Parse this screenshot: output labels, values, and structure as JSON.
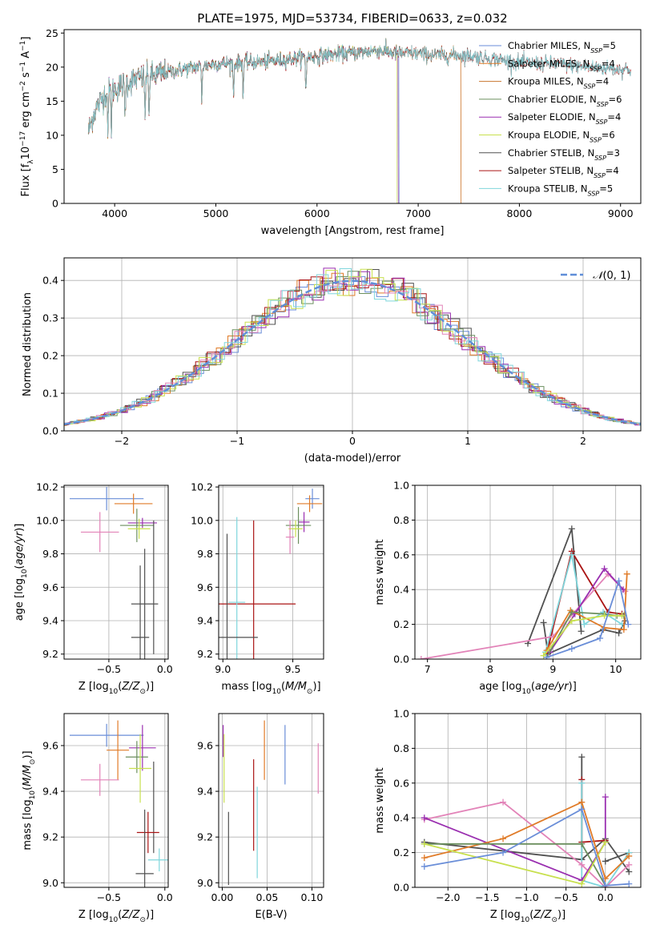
{
  "figure_title": "PLATE=1975, MJD=53734, FIBERID=0633, z=0.032",
  "colors": {
    "blue": "#6a8ed8",
    "orange": "#e07b28",
    "gray": "#505050",
    "red": "#aa1414",
    "purple": "#9a2fb0",
    "green": "#6b8f5e",
    "yellowgreen": "#c8e04e",
    "pink": "#e283b8",
    "cyan": "#7fd6dc",
    "brown": "#c8762f"
  },
  "chart_data": [
    {
      "id": "spectrum",
      "type": "line",
      "xlabel": "wavelength [Angstrom, rest frame]",
      "ylabel": "Flux [f_λ10^-17 erg cm^-2 s^-1 A^-1]",
      "xlim": [
        3500,
        9200
      ],
      "ylim": [
        0,
        25.5
      ],
      "xticks": [
        4000,
        5000,
        6000,
        7000,
        8000,
        9000
      ],
      "yticks": [
        0,
        5,
        10,
        15,
        20,
        25
      ],
      "grid": false,
      "legend_position": "top-right",
      "continuum_points": [
        [
          3740,
          10.5
        ],
        [
          3800,
          13.5
        ],
        [
          3900,
          16
        ],
        [
          4000,
          16.8
        ],
        [
          4100,
          17.5
        ],
        [
          4200,
          18.2
        ],
        [
          4400,
          18.8
        ],
        [
          4600,
          19.5
        ],
        [
          4800,
          20
        ],
        [
          5000,
          20.5
        ],
        [
          5200,
          20.6
        ],
        [
          5500,
          20.8
        ],
        [
          5800,
          21.3
        ],
        [
          6000,
          21.6
        ],
        [
          6200,
          21.9
        ],
        [
          6400,
          22.1
        ],
        [
          6600,
          22.5
        ],
        [
          6800,
          22
        ],
        [
          7000,
          22
        ],
        [
          7200,
          21.7
        ],
        [
          7400,
          21.8
        ],
        [
          7600,
          21.5
        ],
        [
          8000,
          20.7
        ],
        [
          8400,
          20.4
        ],
        [
          8800,
          19.9
        ],
        [
          9000,
          19.7
        ]
      ],
      "absorption_lines": [
        3933,
        3968,
        4102,
        4300,
        4340,
        4861,
        5175,
        5270,
        5890
      ],
      "series": [
        {
          "label": "Chabrier MILES, N_SSP=5",
          "color": "#6a8ed8",
          "end": 6810
        },
        {
          "label": "Salpeter MILES, N_SSP=4",
          "color": "#e07b28",
          "end": 7420
        },
        {
          "label": "Kroupa MILES, N_SSP=4",
          "color": "#c8762f",
          "end": 7420
        },
        {
          "label": "Chabrier ELODIE, N_SSP=6",
          "color": "#6b8f5e",
          "end": 6800
        },
        {
          "label": "Salpeter ELODIE, N_SSP=4",
          "color": "#9a2fb0",
          "end": 6800
        },
        {
          "label": "Kroupa ELODIE, N_SSP=6",
          "color": "#c8e04e",
          "end": 6790
        },
        {
          "label": "Chabrier STELIB, N_SSP=3",
          "color": "#505050",
          "end": 9100
        },
        {
          "label": "Salpeter STELIB, N_SSP=4",
          "color": "#aa1414",
          "end": 9100
        },
        {
          "label": "Kroupa STELIB, N_SSP=5",
          "color": "#7fd6dc",
          "end": 9100
        }
      ]
    },
    {
      "id": "residuals",
      "type": "histogram",
      "xlabel": "(data-model)/error",
      "ylabel": "Normed distribution",
      "xlim": [
        -2.5,
        2.5
      ],
      "ylim": [
        0,
        0.46
      ],
      "xticks": [
        -2,
        -1,
        0,
        1,
        2
      ],
      "yticks": [
        0.0,
        0.1,
        0.2,
        0.3,
        0.4
      ],
      "grid": true,
      "legend_position": "top-right",
      "reference_curve": {
        "label": "N(0,1)",
        "mean": 0,
        "sigma": 1,
        "color": "#5f8ed8"
      },
      "bin_width": 0.1,
      "series_colors": [
        "#6a8ed8",
        "#e07b28",
        "#505050",
        "#aa1414",
        "#9a2fb0",
        "#6b8f5e",
        "#c8e04e",
        "#e283b8",
        "#7fd6dc"
      ]
    },
    {
      "id": "age_vs_Z",
      "type": "errorbar",
      "xlabel": "Z [log10(Z/Z_sun)]",
      "ylabel": "age [log10(age/yr)]",
      "xlim": [
        -0.9,
        0.03
      ],
      "ylim": [
        9.17,
        10.21
      ],
      "xticks": [
        -0.5,
        0.0
      ],
      "yticks": [
        9.2,
        9.4,
        9.6,
        9.8,
        10.0,
        10.2
      ],
      "grid": true,
      "points": [
        {
          "x": -0.52,
          "y": 10.13,
          "xerr": 0.33,
          "yerr": 0.07,
          "color": "#6a8ed8"
        },
        {
          "x": -0.28,
          "y": 10.1,
          "xerr": 0.17,
          "yerr": 0.06,
          "color": "#e07b28"
        },
        {
          "x": -0.58,
          "y": 9.93,
          "xerr": 0.17,
          "yerr": 0.12,
          "color": "#e283b8"
        },
        {
          "x": -0.2,
          "y": 9.985,
          "xerr": 0.13,
          "yerr": 0.03,
          "color": "#9a2fb0"
        },
        {
          "x": -0.25,
          "y": 9.97,
          "xerr": 0.15,
          "yerr": 0.1,
          "color": "#6b8f5e"
        },
        {
          "x": -0.23,
          "y": 9.95,
          "xerr": 0.1,
          "yerr": 0.06,
          "color": "#c8e04e"
        },
        {
          "x": -0.1,
          "y": 9.6,
          "xerr": 0.0,
          "yerr": 0.4,
          "color": "#505050"
        },
        {
          "x": -0.18,
          "y": 9.5,
          "xerr": 0.12,
          "yerr": 0.33,
          "color": "#505050"
        },
        {
          "x": -0.22,
          "y": 9.3,
          "xerr": 0.08,
          "yerr": 0.43,
          "color": "#505050"
        }
      ]
    },
    {
      "id": "age_vs_mass",
      "type": "errorbar",
      "xlabel": "mass [log10(M/M_sun)]",
      "ylabel": "",
      "xlim": [
        8.97,
        9.72
      ],
      "ylim": [
        9.17,
        10.21
      ],
      "xticks": [
        9.0,
        9.5
      ],
      "yticks": [
        9.2,
        9.4,
        9.6,
        9.8,
        10.0,
        10.2
      ],
      "grid": true,
      "points": [
        {
          "x": 9.64,
          "y": 10.13,
          "xerr": 0.05,
          "yerr": 0.06,
          "color": "#6a8ed8"
        },
        {
          "x": 9.62,
          "y": 10.1,
          "xerr": 0.09,
          "yerr": 0.05,
          "color": "#e07b28"
        },
        {
          "x": 9.58,
          "y": 9.99,
          "xerr": 0.04,
          "yerr": 0.06,
          "color": "#9a2fb0"
        },
        {
          "x": 9.54,
          "y": 9.97,
          "xerr": 0.09,
          "yerr": 0.11,
          "color": "#6b8f5e"
        },
        {
          "x": 9.52,
          "y": 9.95,
          "xerr": 0.05,
          "yerr": 0.05,
          "color": "#c8e04e"
        },
        {
          "x": 9.48,
          "y": 9.9,
          "xerr": 0.03,
          "yerr": 0.1,
          "color": "#e283b8"
        },
        {
          "x": 9.22,
          "y": 9.5,
          "xerr": 0.3,
          "yerr": 0.5,
          "color": "#aa1414"
        },
        {
          "x": 9.1,
          "y": 9.51,
          "xerr": 0.06,
          "yerr": 0.51,
          "color": "#7fd6dc"
        },
        {
          "x": 9.03,
          "y": 9.3,
          "xerr": 0.22,
          "yerr": 0.62,
          "color": "#505050"
        }
      ]
    },
    {
      "id": "weight_vs_age",
      "type": "line",
      "xlabel": "age [log10(age/yr)]",
      "ylabel": "mass weight",
      "xlim": [
        6.8,
        10.4
      ],
      "ylim": [
        0,
        1.0
      ],
      "xticks": [
        7,
        8,
        9,
        10
      ],
      "yticks": [
        0.0,
        0.2,
        0.4,
        0.6,
        0.8,
        1.0
      ],
      "grid": true,
      "series": [
        {
          "color": "#505050",
          "x": [
            8.6,
            9.3,
            9.45
          ],
          "y": [
            0.09,
            0.75,
            0.16
          ]
        },
        {
          "color": "#505050",
          "x": [
            8.85,
            8.92,
            9.8,
            10.05,
            10.15
          ],
          "y": [
            0.21,
            0.03,
            0.17,
            0.15,
            0.22
          ]
        },
        {
          "color": "#aa1414",
          "x": [
            8.9,
            9.3,
            9.88,
            10.1
          ],
          "y": [
            0.03,
            0.62,
            0.27,
            0.26
          ]
        },
        {
          "color": "#7fd6dc",
          "x": [
            8.88,
            9.3,
            9.5,
            9.8,
            10.1
          ],
          "y": [
            0.04,
            0.6,
            0.2,
            0.27,
            0.2
          ]
        },
        {
          "color": "#e283b8",
          "x": [
            6.9,
            9.0,
            9.88,
            10.15
          ],
          "y": [
            0.0,
            0.13,
            0.49,
            0.39
          ]
        },
        {
          "color": "#9a2fb0",
          "x": [
            8.95,
            9.35,
            9.82,
            10.12
          ],
          "y": [
            0.04,
            0.26,
            0.52,
            0.4
          ]
        },
        {
          "color": "#e07b28",
          "x": [
            8.9,
            9.28,
            9.82,
            10.13,
            10.18
          ],
          "y": [
            0.05,
            0.28,
            0.18,
            0.17,
            0.49
          ]
        },
        {
          "color": "#6b8f5e",
          "x": [
            8.9,
            9.3,
            9.82,
            10.02,
            10.13
          ],
          "y": [
            0.01,
            0.27,
            0.26,
            0.25,
            0.25
          ]
        },
        {
          "color": "#c8e04e",
          "x": [
            8.85,
            9.3,
            9.82,
            10.1
          ],
          "y": [
            0.02,
            0.22,
            0.25,
            0.25
          ]
        },
        {
          "color": "#6a8ed8",
          "x": [
            8.9,
            9.3,
            9.75,
            10.05,
            10.2
          ],
          "y": [
            0.01,
            0.06,
            0.12,
            0.45,
            0.2
          ]
        }
      ]
    },
    {
      "id": "mass_vs_Z",
      "type": "errorbar",
      "xlabel": "Z [log10(Z/Z_sun)]",
      "ylabel": "mass [log10(M/M_sun)]",
      "xlim": [
        -0.9,
        0.03
      ],
      "ylim": [
        8.98,
        9.74
      ],
      "xticks": [
        -0.5,
        0.0
      ],
      "yticks": [
        9.0,
        9.2,
        9.4,
        9.6
      ],
      "grid": true,
      "points": [
        {
          "x": -0.52,
          "y": 9.645,
          "xerr": 0.33,
          "yerr": 0.05,
          "color": "#6a8ed8"
        },
        {
          "x": -0.42,
          "y": 9.58,
          "xerr": 0.1,
          "yerr": 0.13,
          "color": "#e07b28"
        },
        {
          "x": -0.2,
          "y": 9.59,
          "xerr": 0.12,
          "yerr": 0.1,
          "color": "#9a2fb0"
        },
        {
          "x": -0.25,
          "y": 9.55,
          "xerr": 0.1,
          "yerr": 0.07,
          "color": "#6b8f5e"
        },
        {
          "x": -0.22,
          "y": 9.5,
          "xerr": 0.1,
          "yerr": 0.15,
          "color": "#c8e04e"
        },
        {
          "x": -0.58,
          "y": 9.45,
          "xerr": 0.17,
          "yerr": 0.07,
          "color": "#e283b8"
        },
        {
          "x": -0.1,
          "y": 9.33,
          "xerr": 0.0,
          "yerr": 0.2,
          "color": "#505050"
        },
        {
          "x": -0.15,
          "y": 9.22,
          "xerr": 0.1,
          "yerr": 0.09,
          "color": "#aa1414"
        },
        {
          "x": -0.05,
          "y": 9.1,
          "xerr": 0.1,
          "yerr": 0.05,
          "color": "#7fd6dc"
        },
        {
          "x": -0.18,
          "y": 9.04,
          "xerr": 0.08,
          "yerr": 0.28,
          "color": "#505050"
        }
      ]
    },
    {
      "id": "mass_vs_EBV",
      "type": "errorbar",
      "xlabel": "E(B-V)",
      "ylabel": "",
      "xlim": [
        -0.004,
        0.113
      ],
      "ylim": [
        8.98,
        9.74
      ],
      "xticks": [
        0.0,
        0.05,
        0.1
      ],
      "yticks": [
        9.0,
        9.2,
        9.4,
        9.6
      ],
      "grid": true,
      "points": [
        {
          "x": 0.001,
          "y": 9.62,
          "xerr": 0,
          "yerr": 0.07,
          "color": "#9a2fb0"
        },
        {
          "x": 0.002,
          "y": 9.5,
          "xerr": 0,
          "yerr": 0.15,
          "color": "#c8e04e"
        },
        {
          "x": 0.007,
          "y": 9.15,
          "xerr": 0,
          "yerr": 0.16,
          "color": "#505050"
        },
        {
          "x": 0.035,
          "y": 9.34,
          "xerr": 0,
          "yerr": 0.2,
          "color": "#aa1414"
        },
        {
          "x": 0.039,
          "y": 9.22,
          "xerr": 0,
          "yerr": 0.2,
          "color": "#7fd6dc"
        },
        {
          "x": 0.047,
          "y": 9.58,
          "xerr": 0,
          "yerr": 0.13,
          "color": "#e07b28"
        },
        {
          "x": 0.07,
          "y": 9.56,
          "xerr": 0,
          "yerr": 0.13,
          "color": "#6a8ed8"
        },
        {
          "x": 0.107,
          "y": 9.5,
          "xerr": 0,
          "yerr": 0.11,
          "color": "#e283b8"
        }
      ]
    },
    {
      "id": "weight_vs_Z",
      "type": "line",
      "xlabel": "Z [log10(Z/Z_sun)]",
      "ylabel": "mass weight",
      "xlim": [
        -2.42,
        0.45
      ],
      "ylim": [
        0,
        1.0
      ],
      "xticks": [
        -2.0,
        -1.5,
        -1.0,
        -0.5,
        0.0
      ],
      "yticks": [
        0.0,
        0.2,
        0.4,
        0.6,
        0.8,
        1.0
      ],
      "grid": true,
      "series": [
        {
          "color": "#505050",
          "x": [
            -0.3,
            -0.3
          ],
          "y": [
            0.16,
            0.75
          ]
        },
        {
          "color": "#505050",
          "x": [
            -2.3,
            -0.3,
            0.0,
            0.3
          ],
          "y": [
            0.26,
            0.16,
            0.28,
            0.09
          ]
        },
        {
          "color": "#505050",
          "x": [
            0.0,
            0.3
          ],
          "y": [
            0.15,
            0.2
          ]
        },
        {
          "color": "#aa1414",
          "x": [
            -0.3,
            -0.3,
            0.0
          ],
          "y": [
            0.62,
            0.26,
            0.27
          ]
        },
        {
          "color": "#7fd6dc",
          "x": [
            -0.3,
            -0.3,
            0.0,
            0.3
          ],
          "y": [
            0.6,
            0.04,
            0.0,
            0.2
          ]
        },
        {
          "color": "#e283b8",
          "x": [
            -2.3,
            -1.3,
            -0.3,
            0.0,
            0.3
          ],
          "y": [
            0.39,
            0.49,
            0.13,
            0.0,
            0.13
          ]
        },
        {
          "color": "#9a2fb0",
          "x": [
            -2.3,
            -0.3,
            0.0,
            0.0
          ],
          "y": [
            0.4,
            0.04,
            0.26,
            0.52
          ]
        },
        {
          "color": "#e07b28",
          "x": [
            -2.3,
            -1.3,
            -0.3,
            0.0,
            0.3
          ],
          "y": [
            0.17,
            0.28,
            0.49,
            0.05,
            0.18
          ]
        },
        {
          "color": "#6b8f5e",
          "x": [
            -2.3,
            -0.3,
            0.0
          ],
          "y": [
            0.25,
            0.25,
            0.01
          ]
        },
        {
          "color": "#c8e04e",
          "x": [
            -2.3,
            -0.3,
            0.0
          ],
          "y": [
            0.25,
            0.02,
            0.26
          ]
        },
        {
          "color": "#6a8ed8",
          "x": [
            -2.3,
            -1.3,
            -0.3,
            0.0,
            0.3
          ],
          "y": [
            0.12,
            0.2,
            0.45,
            0.01,
            0.02
          ]
        }
      ]
    }
  ]
}
